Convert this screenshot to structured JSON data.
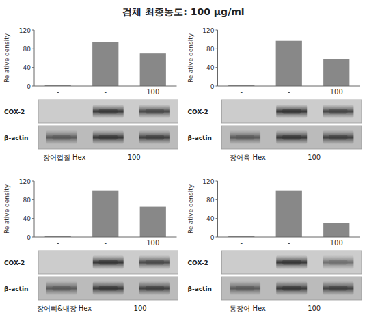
{
  "title": "검체 최종농도: 100 μg/ml",
  "chart_data": [
    {
      "type": "bar",
      "categories": [
        "-",
        "-",
        "100"
      ],
      "values": [
        2,
        95,
        70
      ],
      "color": "#888888",
      "ylim": [
        0,
        120
      ],
      "yticks": [
        0,
        40,
        80,
        120
      ],
      "ylabel": "Relative density",
      "annotations": [
        "장어껍질 Hex   -        -      100"
      ],
      "blots": [
        {
          "name": "COX-2",
          "values": [
            0.0,
            0.88,
            0.78
          ],
          "color": "#222222",
          "background": "#cccccc"
        },
        {
          "name": "β-actin",
          "values": [
            0.65,
            0.88,
            0.82
          ],
          "color": "#222222",
          "background": "#bbbbbb"
        }
      ]
    },
    {
      "type": "bar",
      "categories": [
        "-",
        "-",
        "100"
      ],
      "values": [
        2,
        97,
        58
      ],
      "color": "#888888",
      "ylim": [
        0,
        120
      ],
      "yticks": [
        0,
        40,
        80,
        120
      ],
      "ylabel": "Relative density",
      "annotations": [
        "장어육 Hex   -        -      100"
      ],
      "blots": [
        {
          "name": "COX-2",
          "values": [
            0.0,
            0.9,
            0.8
          ],
          "color": "#222222",
          "background": "#cccccc"
        },
        {
          "name": "β-actin",
          "values": [
            0.65,
            0.88,
            0.82
          ],
          "color": "#222222",
          "background": "#bbbbbb"
        }
      ]
    },
    {
      "type": "bar",
      "categories": [
        "-",
        "-",
        "100"
      ],
      "values": [
        2,
        100,
        65
      ],
      "color": "#888888",
      "ylim": [
        0,
        120
      ],
      "yticks": [
        0,
        40,
        80,
        120
      ],
      "ylabel": "Relative density",
      "annotations": [
        "장어뼈&내장 Hex   -        -      100"
      ],
      "blots": [
        {
          "name": "COX-2",
          "values": [
            0.0,
            0.9,
            0.78
          ],
          "color": "#222222",
          "background": "#cccccc"
        },
        {
          "name": "β-actin",
          "values": [
            0.65,
            0.88,
            0.82
          ],
          "color": "#222222",
          "background": "#bbbbbb"
        }
      ]
    },
    {
      "type": "bar",
      "categories": [
        "-",
        "-",
        "100"
      ],
      "values": [
        2,
        100,
        30
      ],
      "color": "#888888",
      "ylim": [
        0,
        120
      ],
      "yticks": [
        0,
        40,
        80,
        120
      ],
      "ylabel": "Relative density",
      "annotations": [
        "통장어 Hex   -        -      100"
      ],
      "blots": [
        {
          "name": "COX-2",
          "values": [
            0.0,
            0.9,
            0.55
          ],
          "color": "#222222",
          "background": "#cccccc"
        },
        {
          "name": "β-actin",
          "values": [
            0.65,
            0.88,
            0.82
          ],
          "color": "#222222",
          "background": "#bbbbbb"
        }
      ]
    }
  ]
}
